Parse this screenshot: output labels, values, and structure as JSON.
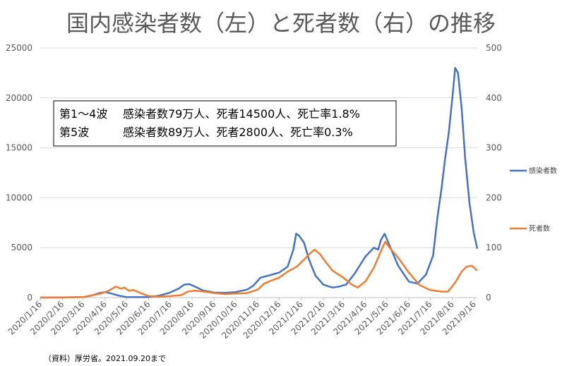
{
  "chart_data": {
    "type": "line",
    "title": "国内感染者数（左）と死者数（右）の推移",
    "source_note": "（資料）厚労省。2021.09.20まで",
    "annotation": {
      "lines": [
        {
          "label": "第1～4波",
          "text": "感染者数79万人、死者14500人、死亡率1.8%"
        },
        {
          "label": "第5波",
          "text": "感染者数89万人、死者2800人、死亡率0.3%"
        }
      ]
    },
    "x_tick_labels": [
      "2020/1/16",
      "2020/2/16",
      "2020/3/16",
      "2020/4/16",
      "2020/5/16",
      "2020/6/16",
      "2020/7/16",
      "2020/8/16",
      "2020/9/16",
      "2020/10/16",
      "2020/11/16",
      "2020/12/16",
      "2021/1/16",
      "2021/2/16",
      "2021/3/16",
      "2021/4/16",
      "2021/5/16",
      "2021/6/16",
      "2021/7/16",
      "2021/8/16",
      "2021/9/16"
    ],
    "y_left": {
      "min": 0,
      "max": 25000,
      "ticks": [
        "0",
        "5000",
        "10000",
        "15000",
        "20000",
        "25000"
      ]
    },
    "y_right": {
      "min": 0,
      "max": 500,
      "ticks": [
        "0",
        "100",
        "200",
        "300",
        "400",
        "500"
      ]
    },
    "grid": true,
    "legend_position": "right",
    "series": [
      {
        "name": "感染者数",
        "axis": "left",
        "color": "#4472C4",
        "points": [
          [
            "2020-01-16",
            0
          ],
          [
            "2020-02-16",
            20
          ],
          [
            "2020-03-16",
            50
          ],
          [
            "2020-03-28",
            200
          ],
          [
            "2020-04-08",
            450
          ],
          [
            "2020-04-16",
            550
          ],
          [
            "2020-04-25",
            400
          ],
          [
            "2020-05-05",
            200
          ],
          [
            "2020-05-16",
            60
          ],
          [
            "2020-06-01",
            40
          ],
          [
            "2020-06-16",
            60
          ],
          [
            "2020-07-01",
            200
          ],
          [
            "2020-07-16",
            500
          ],
          [
            "2020-07-28",
            900
          ],
          [
            "2020-08-05",
            1300
          ],
          [
            "2020-08-12",
            1350
          ],
          [
            "2020-08-20",
            1100
          ],
          [
            "2020-09-01",
            700
          ],
          [
            "2020-09-16",
            500
          ],
          [
            "2020-10-01",
            480
          ],
          [
            "2020-10-16",
            550
          ],
          [
            "2020-11-01",
            800
          ],
          [
            "2020-11-10",
            1200
          ],
          [
            "2020-11-20",
            2000
          ],
          [
            "2020-12-01",
            2200
          ],
          [
            "2020-12-16",
            2500
          ],
          [
            "2020-12-28",
            3100
          ],
          [
            "2021-01-05",
            4800
          ],
          [
            "2021-01-09",
            6400
          ],
          [
            "2021-01-13",
            6200
          ],
          [
            "2021-01-20",
            5500
          ],
          [
            "2021-01-27",
            3800
          ],
          [
            "2021-02-05",
            2200
          ],
          [
            "2021-02-16",
            1300
          ],
          [
            "2021-03-01",
            1000
          ],
          [
            "2021-03-10",
            1100
          ],
          [
            "2021-03-20",
            1300
          ],
          [
            "2021-04-01",
            2400
          ],
          [
            "2021-04-16",
            4100
          ],
          [
            "2021-04-28",
            5000
          ],
          [
            "2021-05-04",
            4800
          ],
          [
            "2021-05-08",
            5800
          ],
          [
            "2021-05-13",
            6400
          ],
          [
            "2021-05-20",
            5200
          ],
          [
            "2021-06-01",
            3200
          ],
          [
            "2021-06-16",
            1600
          ],
          [
            "2021-06-28",
            1400
          ],
          [
            "2021-07-10",
            2300
          ],
          [
            "2021-07-20",
            4200
          ],
          [
            "2021-07-26",
            8000
          ],
          [
            "2021-08-01",
            11000
          ],
          [
            "2021-08-06",
            14000
          ],
          [
            "2021-08-11",
            16500
          ],
          [
            "2021-08-16",
            20000
          ],
          [
            "2021-08-20",
            23000
          ],
          [
            "2021-08-24",
            22500
          ],
          [
            "2021-08-29",
            19000
          ],
          [
            "2021-09-03",
            14000
          ],
          [
            "2021-09-09",
            9500
          ],
          [
            "2021-09-15",
            6500
          ],
          [
            "2021-09-20",
            4900
          ]
        ]
      },
      {
        "name": "死者数",
        "axis": "right",
        "color": "#ED7D31",
        "points": [
          [
            "2020-01-16",
            0
          ],
          [
            "2020-02-16",
            0
          ],
          [
            "2020-03-16",
            1
          ],
          [
            "2020-03-26",
            4
          ],
          [
            "2020-04-10",
            8
          ],
          [
            "2020-04-20",
            13
          ],
          [
            "2020-05-01",
            22
          ],
          [
            "2020-05-08",
            18
          ],
          [
            "2020-05-13",
            20
          ],
          [
            "2020-05-19",
            14
          ],
          [
            "2020-05-26",
            15
          ],
          [
            "2020-06-03",
            10
          ],
          [
            "2020-06-16",
            3
          ],
          [
            "2020-07-01",
            2
          ],
          [
            "2020-07-16",
            3
          ],
          [
            "2020-08-01",
            5
          ],
          [
            "2020-08-10",
            12
          ],
          [
            "2020-08-20",
            14
          ],
          [
            "2020-09-01",
            12
          ],
          [
            "2020-09-16",
            9
          ],
          [
            "2020-10-01",
            7
          ],
          [
            "2020-10-16",
            8
          ],
          [
            "2020-11-01",
            9
          ],
          [
            "2020-11-16",
            16
          ],
          [
            "2020-11-25",
            28
          ],
          [
            "2020-12-05",
            34
          ],
          [
            "2020-12-16",
            40
          ],
          [
            "2020-12-28",
            52
          ],
          [
            "2021-01-10",
            62
          ],
          [
            "2021-01-20",
            76
          ],
          [
            "2021-01-28",
            88
          ],
          [
            "2021-02-04",
            96
          ],
          [
            "2021-02-12",
            86
          ],
          [
            "2021-02-20",
            70
          ],
          [
            "2021-03-01",
            54
          ],
          [
            "2021-03-16",
            40
          ],
          [
            "2021-03-28",
            26
          ],
          [
            "2021-04-05",
            20
          ],
          [
            "2021-04-16",
            32
          ],
          [
            "2021-04-28",
            60
          ],
          [
            "2021-05-10",
            100
          ],
          [
            "2021-05-14",
            112
          ],
          [
            "2021-05-20",
            100
          ],
          [
            "2021-06-01",
            80
          ],
          [
            "2021-06-16",
            50
          ],
          [
            "2021-07-01",
            25
          ],
          [
            "2021-07-16",
            15
          ],
          [
            "2021-08-01",
            12
          ],
          [
            "2021-08-10",
            12
          ],
          [
            "2021-08-20",
            30
          ],
          [
            "2021-08-29",
            52
          ],
          [
            "2021-09-05",
            62
          ],
          [
            "2021-09-12",
            64
          ],
          [
            "2021-09-20",
            54
          ]
        ]
      }
    ]
  }
}
